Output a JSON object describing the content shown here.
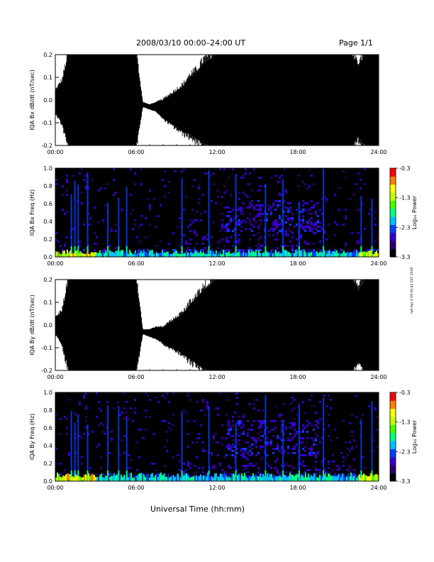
{
  "header": {
    "title": "2008/03/10   00:00–24:00 UT",
    "page": "Page 1/1"
  },
  "footer": {
    "xlabel": "Universal Time (hh:mm)",
    "side_note": "not Apr 4 09:30:42 EST 2018"
  },
  "chart_data": [
    {
      "type": "line",
      "title": "",
      "ylabel": "IQA Bx dB/dt (nT/sec)",
      "xlabel": "",
      "x_ticks": [
        "00:00",
        "06:00",
        "12:00",
        "18:00",
        "24:00"
      ],
      "y_ticks": [
        "0.2",
        "0.1",
        "0.0",
        "-0.1",
        "-0.2"
      ],
      "xlim": [
        0,
        24
      ],
      "ylim": [
        -0.2,
        0.2
      ],
      "series": [
        {
          "x": [
            0,
            0.5,
            1,
            1.5,
            2,
            2.5,
            3,
            3.5,
            4,
            4.5,
            5,
            5.5,
            6,
            6.5,
            7,
            7.5,
            8,
            8.5,
            9,
            9.5,
            10,
            10.5,
            11,
            11.5,
            12,
            12.5,
            13,
            13.5,
            14,
            14.5,
            15,
            15.5,
            16,
            16.5,
            17,
            17.5,
            18,
            18.5,
            19,
            19.5,
            20,
            20.5,
            21,
            21.5,
            22,
            22.5,
            23,
            23.5,
            24
          ],
          "upper": [
            0.04,
            0.08,
            0.2,
            0.2,
            0.2,
            0.2,
            0.2,
            0.2,
            0.2,
            0.2,
            0.2,
            0.2,
            0.2,
            -0.01,
            -0.02,
            -0.01,
            0.0,
            0.02,
            0.04,
            0.06,
            0.1,
            0.12,
            0.16,
            0.18,
            0.2,
            0.2,
            0.2,
            0.2,
            0.2,
            0.2,
            0.2,
            0.2,
            0.2,
            0.2,
            0.2,
            0.2,
            0.2,
            0.2,
            0.2,
            0.2,
            0.2,
            0.2,
            0.2,
            0.2,
            0.2,
            0.15,
            0.2,
            0.2,
            0.2
          ],
          "lower": [
            -0.05,
            -0.1,
            -0.2,
            -0.2,
            -0.2,
            -0.2,
            -0.2,
            -0.2,
            -0.2,
            -0.2,
            -0.2,
            -0.2,
            -0.2,
            -0.03,
            -0.04,
            -0.05,
            -0.08,
            -0.1,
            -0.12,
            -0.14,
            -0.15,
            -0.17,
            -0.19,
            -0.2,
            -0.2,
            -0.2,
            -0.2,
            -0.2,
            -0.2,
            -0.2,
            -0.2,
            -0.2,
            -0.2,
            -0.2,
            -0.2,
            -0.2,
            -0.2,
            -0.2,
            -0.2,
            -0.2,
            -0.2,
            -0.2,
            -0.2,
            -0.2,
            -0.2,
            -0.16,
            -0.2,
            -0.2,
            -0.2
          ]
        }
      ]
    },
    {
      "type": "heatmap",
      "title": "",
      "ylabel": "IQA Bx Freq (Hz)",
      "xlabel": "",
      "x_ticks": [
        "00:00",
        "06:00",
        "12:00",
        "18:00",
        "24:00"
      ],
      "y_ticks": [
        "1.0",
        "0.8",
        "0.6",
        "0.4",
        "0.2",
        "0.0"
      ],
      "xlim": [
        0,
        24
      ],
      "ylim": [
        0,
        1.0
      ],
      "colorbar": {
        "label": "Log₁₀ Power",
        "ticks": [
          "-0.3",
          "-1.3",
          "-2.3",
          "-3.3"
        ],
        "range": [
          -3.3,
          -0.3
        ],
        "colors": [
          "#000000",
          "#2a0070",
          "#3300cc",
          "#0040ff",
          "#00c0ff",
          "#00ff80",
          "#40ff00",
          "#c0ff00",
          "#ffff00",
          "#ff8000",
          "#ff0000"
        ]
      },
      "features": {
        "spikes_hours": [
          1.2,
          1.45,
          1.7,
          2.4,
          3.9,
          4.7,
          5.3,
          9.4,
          11.4,
          13.4,
          15.6,
          16.9,
          18.1,
          19.9,
          22.7,
          23.5
        ],
        "blob_freq_hz": [
          0.3,
          0.65
        ],
        "blob_hours": [
          12.5,
          19.5
        ],
        "floor_freq_hz": 0.05
      }
    },
    {
      "type": "line",
      "title": "",
      "ylabel": "IQA By dB/dt (nT/sec)",
      "xlabel": "",
      "x_ticks": [
        "00:00",
        "06:00",
        "12:00",
        "18:00",
        "24:00"
      ],
      "y_ticks": [
        "0.2",
        "0.1",
        "0.0",
        "-0.1",
        "-0.2"
      ],
      "xlim": [
        0,
        24
      ],
      "ylim": [
        -0.2,
        0.2
      ],
      "series": [
        {
          "x": [
            0,
            0.5,
            1,
            1.5,
            2,
            2.5,
            3,
            3.5,
            4,
            4.5,
            5,
            5.5,
            6,
            6.5,
            7,
            7.5,
            8,
            8.5,
            9,
            9.5,
            10,
            10.5,
            11,
            11.5,
            12,
            12.5,
            13,
            13.5,
            14,
            14.5,
            15,
            15.5,
            16,
            16.5,
            17,
            17.5,
            18,
            18.5,
            19,
            19.5,
            20,
            20.5,
            21,
            21.5,
            22,
            22.5,
            23,
            23.5,
            24
          ],
          "upper": [
            0.03,
            0.06,
            0.2,
            0.2,
            0.2,
            0.2,
            0.2,
            0.2,
            0.2,
            0.2,
            0.2,
            0.2,
            0.2,
            -0.02,
            -0.02,
            -0.01,
            -0.01,
            0.01,
            0.03,
            0.05,
            0.09,
            0.12,
            0.15,
            0.18,
            0.2,
            0.2,
            0.2,
            0.2,
            0.2,
            0.2,
            0.2,
            0.2,
            0.2,
            0.2,
            0.2,
            0.2,
            0.2,
            0.2,
            0.2,
            0.2,
            0.2,
            0.2,
            0.2,
            0.2,
            0.2,
            0.15,
            0.2,
            0.2,
            0.2
          ],
          "lower": [
            -0.04,
            -0.08,
            -0.2,
            -0.2,
            -0.2,
            -0.2,
            -0.2,
            -0.2,
            -0.2,
            -0.2,
            -0.2,
            -0.2,
            -0.2,
            -0.04,
            -0.05,
            -0.06,
            -0.08,
            -0.1,
            -0.11,
            -0.13,
            -0.15,
            -0.17,
            -0.19,
            -0.2,
            -0.2,
            -0.2,
            -0.2,
            -0.2,
            -0.2,
            -0.2,
            -0.2,
            -0.2,
            -0.2,
            -0.2,
            -0.2,
            -0.2,
            -0.2,
            -0.2,
            -0.2,
            -0.2,
            -0.2,
            -0.2,
            -0.2,
            -0.2,
            -0.2,
            -0.16,
            -0.2,
            -0.2,
            -0.2
          ]
        }
      ]
    },
    {
      "type": "heatmap",
      "title": "",
      "ylabel": "IQA By Freq (Hz)",
      "xlabel": "",
      "x_ticks": [
        "00:00",
        "06:00",
        "12:00",
        "18:00",
        "24:00"
      ],
      "y_ticks": [
        "1.0",
        "0.8",
        "0.6",
        "0.4",
        "0.2",
        "0.0"
      ],
      "xlim": [
        0,
        24
      ],
      "ylim": [
        0,
        1.0
      ],
      "colorbar": {
        "label": "Log₁₀ Power",
        "ticks": [
          "-0.3",
          "-1.3",
          "-2.3",
          "-3.3"
        ],
        "range": [
          -3.3,
          -0.3
        ],
        "colors": [
          "#000000",
          "#2a0070",
          "#3300cc",
          "#0040ff",
          "#00c0ff",
          "#00ff80",
          "#40ff00",
          "#c0ff00",
          "#ffff00",
          "#ff8000",
          "#ff0000"
        ]
      },
      "features": {
        "spikes_hours": [
          1.2,
          1.45,
          1.7,
          2.4,
          3.9,
          4.7,
          5.3,
          9.4,
          11.4,
          13.4,
          15.6,
          16.9,
          18.1,
          19.9,
          22.7,
          23.5
        ],
        "blob_freq_hz": [
          0.3,
          0.7
        ],
        "blob_hours": [
          12.5,
          19.5
        ],
        "floor_freq_hz": 0.06
      }
    }
  ]
}
